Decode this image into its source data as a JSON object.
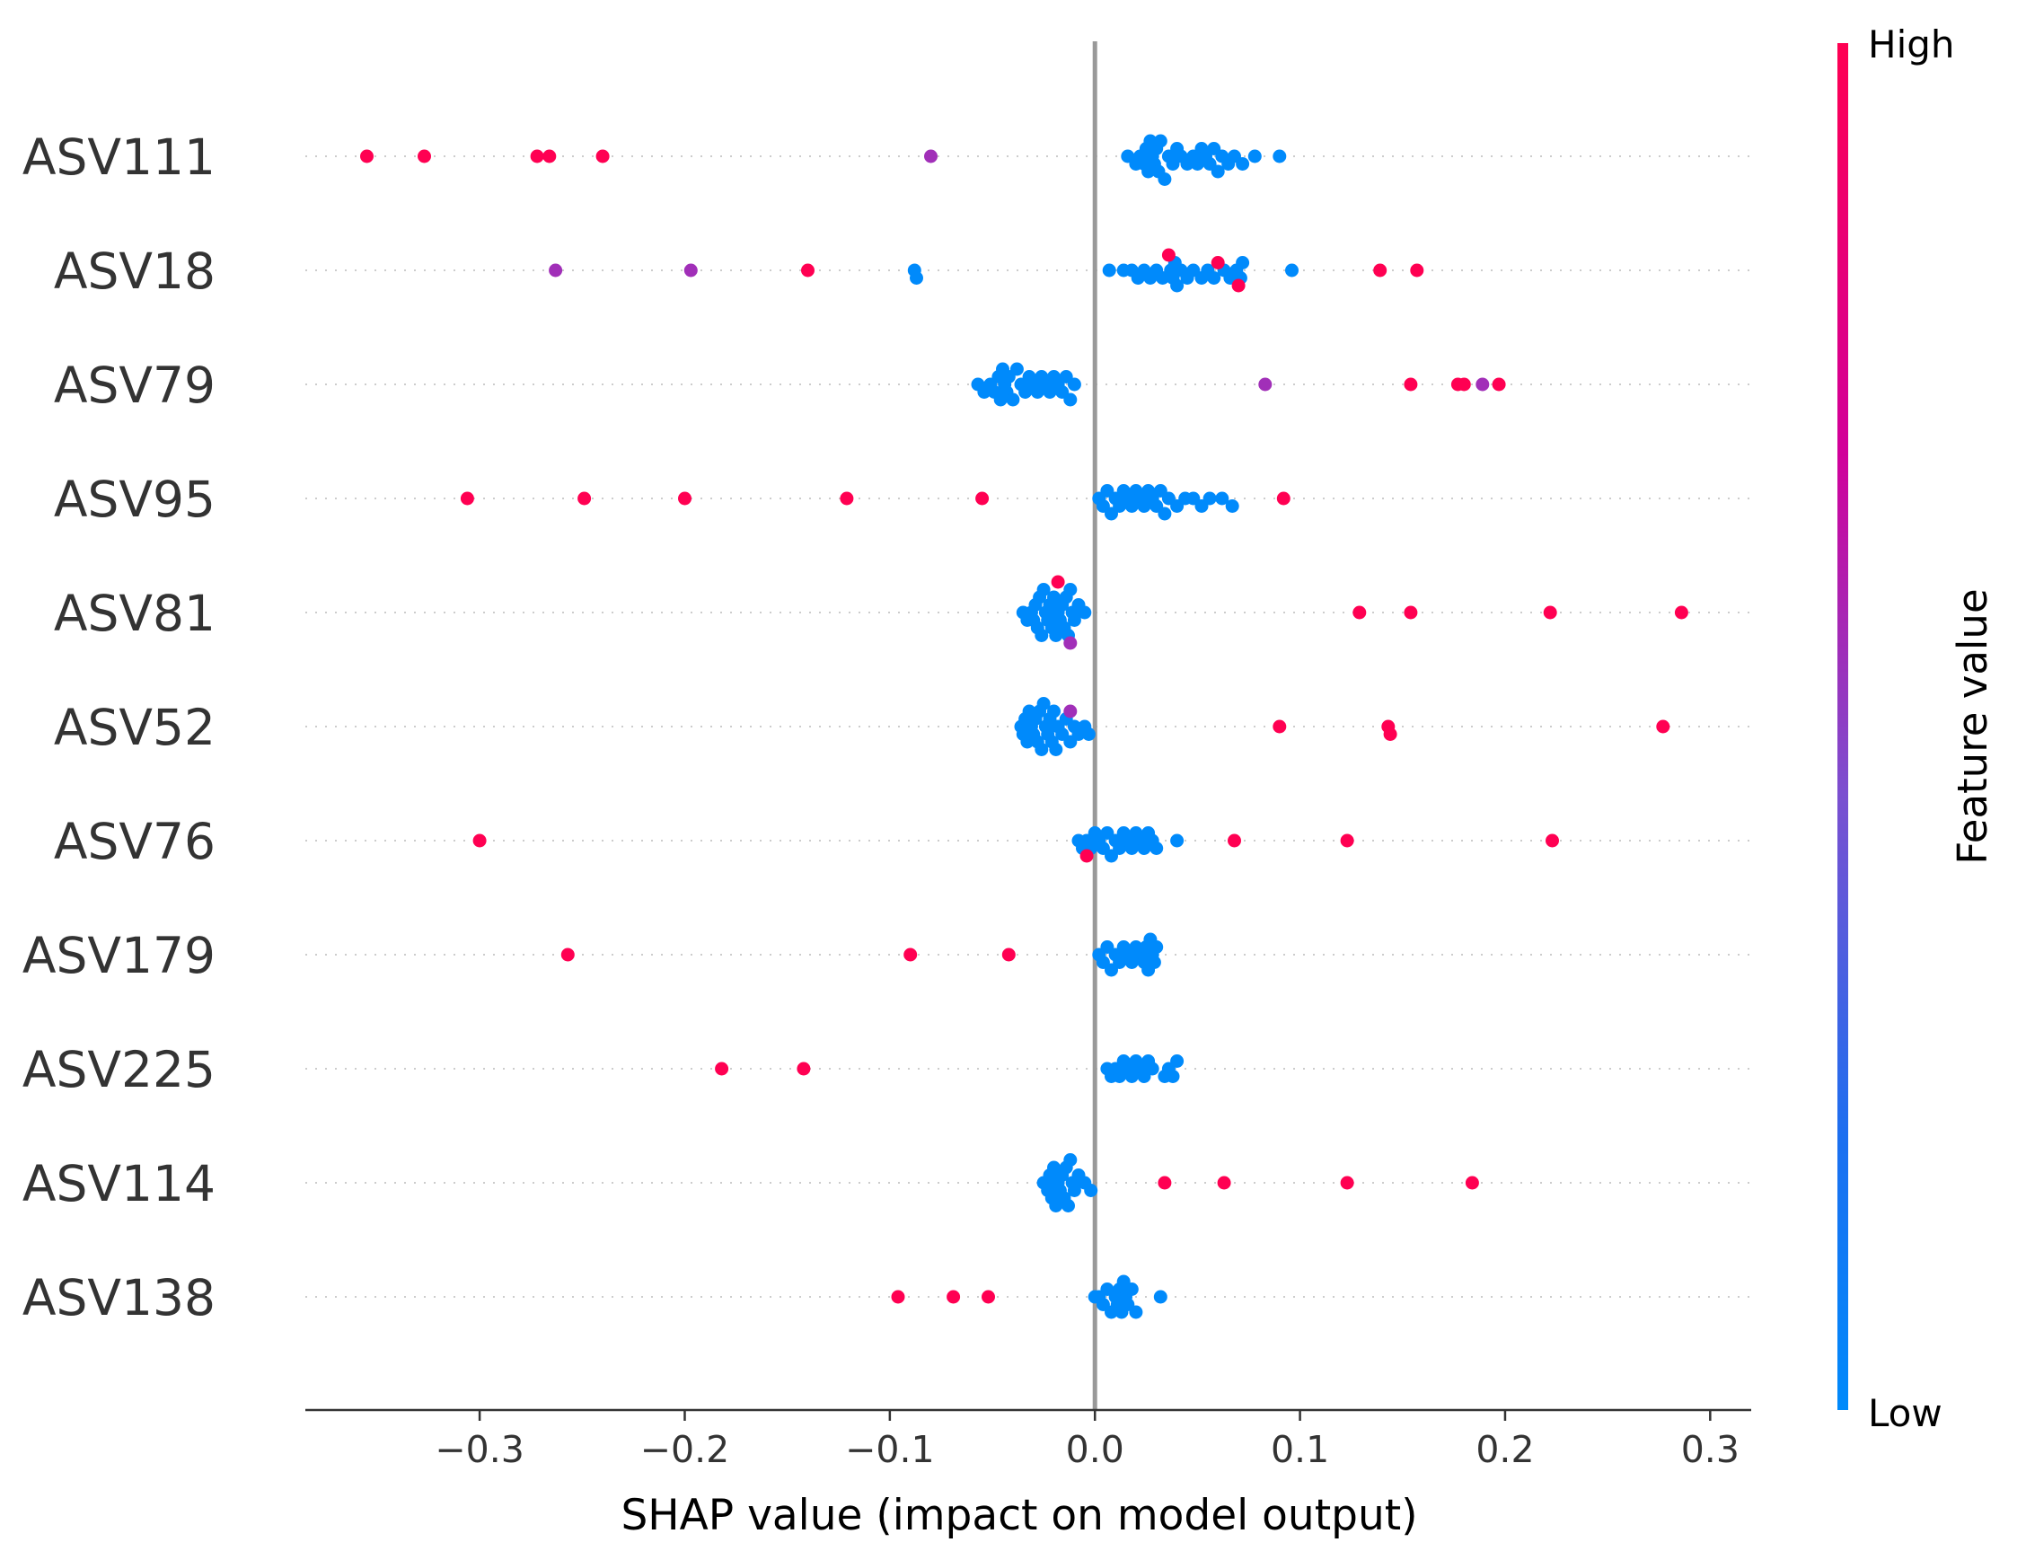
{
  "chart_data": {
    "type": "scatter",
    "xlabel": "SHAP value (impact on model output)",
    "xlim": [
      -0.385,
      0.32
    ],
    "x_ticks": [
      -0.3,
      -0.2,
      -0.1,
      0.0,
      0.1,
      0.2,
      0.3
    ],
    "x_tick_labels": [
      "−0.3",
      "−0.2",
      "−0.1",
      "0.0",
      "0.1",
      "0.2",
      "0.3"
    ],
    "zero_line": 0.0,
    "grid": false,
    "colorbar": {
      "title": "Feature value",
      "high_label": "High",
      "low_label": "Low",
      "high_color": "#ff0052",
      "low_color": "#008afb"
    },
    "features": [
      {
        "name": "ASV111",
        "high_points": [
          -0.355,
          -0.327,
          -0.272,
          -0.266,
          -0.24
        ],
        "mid_points": [
          -0.08
        ],
        "low_points": [
          0.016,
          0.02,
          0.022,
          0.024,
          0.025,
          0.026,
          0.027,
          0.028,
          0.029,
          0.03,
          0.031,
          0.032,
          0.034,
          0.036,
          0.038,
          0.04,
          0.042,
          0.045,
          0.048,
          0.05,
          0.052,
          0.054,
          0.056,
          0.058,
          0.06,
          0.062,
          0.065,
          0.068,
          0.072,
          0.078,
          0.09
        ]
      },
      {
        "name": "ASV18",
        "high_points": [
          -0.14,
          0.036,
          0.06,
          0.07,
          0.139,
          0.157
        ],
        "mid_points": [
          -0.263,
          -0.197
        ],
        "low_points": [
          -0.088,
          -0.087,
          0.007,
          0.014,
          0.018,
          0.021,
          0.024,
          0.027,
          0.03,
          0.033,
          0.037,
          0.038,
          0.039,
          0.04,
          0.042,
          0.045,
          0.048,
          0.052,
          0.055,
          0.058,
          0.063,
          0.066,
          0.069,
          0.071,
          0.072,
          0.096
        ]
      },
      {
        "name": "ASV79",
        "high_points": [
          0.154,
          0.177,
          0.18,
          0.197
        ],
        "mid_points": [
          0.083,
          0.189
        ],
        "low_points": [
          -0.057,
          -0.054,
          -0.051,
          -0.049,
          -0.047,
          -0.046,
          -0.045,
          -0.044,
          -0.043,
          -0.042,
          -0.04,
          -0.038,
          -0.036,
          -0.034,
          -0.032,
          -0.03,
          -0.028,
          -0.026,
          -0.024,
          -0.022,
          -0.02,
          -0.018,
          -0.016,
          -0.014,
          -0.012,
          -0.01
        ]
      },
      {
        "name": "ASV95",
        "high_points": [
          -0.306,
          -0.249,
          -0.2,
          -0.121,
          -0.055,
          0.092
        ],
        "mid_points": [],
        "low_points": [
          0.002,
          0.004,
          0.006,
          0.008,
          0.01,
          0.012,
          0.014,
          0.016,
          0.018,
          0.02,
          0.022,
          0.024,
          0.026,
          0.028,
          0.03,
          0.032,
          0.034,
          0.036,
          0.04,
          0.044,
          0.048,
          0.052,
          0.056,
          0.062,
          0.067
        ]
      },
      {
        "name": "ASV81",
        "high_points": [
          -0.018,
          0.129,
          0.154,
          0.222,
          0.286
        ],
        "mid_points": [
          -0.012
        ],
        "low_points": [
          -0.035,
          -0.033,
          -0.031,
          -0.03,
          -0.029,
          -0.028,
          -0.027,
          -0.026,
          -0.025,
          -0.024,
          -0.023,
          -0.022,
          -0.021,
          -0.02,
          -0.019,
          -0.018,
          -0.017,
          -0.016,
          -0.015,
          -0.014,
          -0.013,
          -0.012,
          -0.011,
          -0.01,
          -0.008,
          -0.005
        ]
      },
      {
        "name": "ASV52",
        "high_points": [
          0.09,
          0.143,
          0.144,
          0.277
        ],
        "mid_points": [
          -0.012
        ],
        "low_points": [
          -0.036,
          -0.035,
          -0.034,
          -0.033,
          -0.032,
          -0.031,
          -0.03,
          -0.029,
          -0.028,
          -0.027,
          -0.026,
          -0.025,
          -0.024,
          -0.023,
          -0.022,
          -0.021,
          -0.02,
          -0.019,
          -0.018,
          -0.016,
          -0.014,
          -0.012,
          -0.01,
          -0.008,
          -0.005,
          -0.003
        ]
      },
      {
        "name": "ASV76",
        "high_points": [
          -0.3,
          -0.004,
          0.068,
          0.123,
          0.223
        ],
        "mid_points": [],
        "low_points": [
          -0.008,
          -0.006,
          -0.004,
          -0.002,
          0.0,
          0.002,
          0.004,
          0.006,
          0.008,
          0.01,
          0.012,
          0.014,
          0.016,
          0.018,
          0.02,
          0.022,
          0.024,
          0.026,
          0.028,
          0.03,
          0.04
        ]
      },
      {
        "name": "ASV179",
        "high_points": [
          -0.257,
          -0.09,
          -0.042
        ],
        "mid_points": [],
        "low_points": [
          0.002,
          0.004,
          0.006,
          0.008,
          0.01,
          0.012,
          0.014,
          0.016,
          0.018,
          0.02,
          0.022,
          0.024,
          0.025,
          0.026,
          0.027,
          0.028,
          0.029,
          0.03
        ]
      },
      {
        "name": "ASV225",
        "high_points": [
          -0.182,
          -0.142
        ],
        "mid_points": [],
        "low_points": [
          0.006,
          0.008,
          0.01,
          0.012,
          0.014,
          0.016,
          0.018,
          0.02,
          0.022,
          0.024,
          0.026,
          0.028,
          0.034,
          0.036,
          0.038,
          0.04
        ]
      },
      {
        "name": "ASV114",
        "high_points": [
          0.034,
          0.063,
          0.123,
          0.184
        ],
        "mid_points": [],
        "low_points": [
          -0.025,
          -0.024,
          -0.023,
          -0.022,
          -0.021,
          -0.02,
          -0.019,
          -0.018,
          -0.017,
          -0.016,
          -0.015,
          -0.014,
          -0.013,
          -0.012,
          -0.011,
          -0.01,
          -0.008,
          -0.005,
          -0.002
        ]
      },
      {
        "name": "ASV138",
        "high_points": [
          -0.096,
          -0.069,
          -0.052
        ],
        "mid_points": [],
        "low_points": [
          0.0,
          0.002,
          0.004,
          0.006,
          0.008,
          0.01,
          0.011,
          0.012,
          0.013,
          0.014,
          0.015,
          0.016,
          0.018,
          0.02,
          0.032
        ]
      }
    ]
  }
}
